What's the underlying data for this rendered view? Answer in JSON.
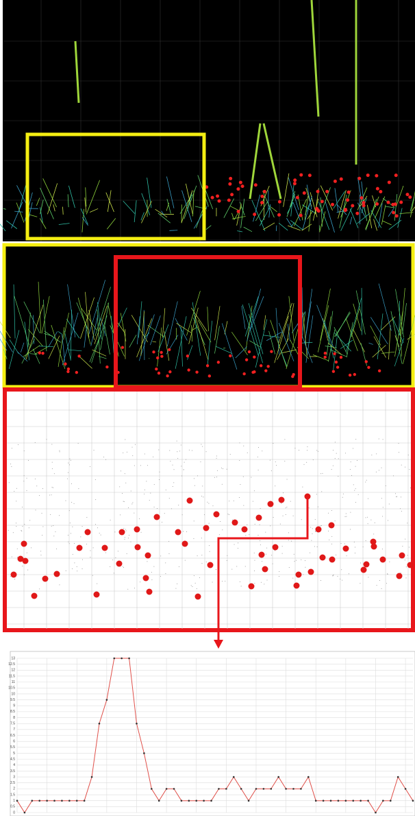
{
  "chart_data": {
    "type": "line",
    "categories": [
      null,
      null,
      null,
      null,
      null,
      null,
      null,
      null,
      null,
      null,
      null,
      null,
      null,
      null,
      null,
      null,
      null,
      null,
      null,
      null,
      null,
      null,
      null,
      null,
      null,
      null,
      null,
      null,
      null,
      null,
      null,
      null,
      null,
      null,
      null,
      null,
      null,
      null,
      null,
      null,
      null,
      null,
      null,
      null,
      null,
      null,
      null,
      null,
      null,
      null,
      null,
      null,
      null,
      null
    ],
    "series": [
      {
        "color": "#e0504a",
        "values": [
          1,
          0,
          1,
          1,
          1,
          1,
          1,
          1,
          1,
          1,
          3,
          7.5,
          9.5,
          13,
          13,
          13,
          7.5,
          5,
          2,
          1,
          2,
          2,
          1,
          1,
          1,
          1,
          1,
          2,
          2,
          3,
          2,
          1,
          2,
          2,
          2,
          3,
          2,
          2,
          2,
          3,
          1,
          1,
          1,
          1,
          1,
          1,
          1,
          1,
          0,
          1,
          1,
          3,
          2,
          1
        ]
      }
    ],
    "ylim": [
      0,
      13
    ],
    "yticks": [
      0,
      0.5,
      1,
      1.5,
      2,
      2.5,
      3,
      3.5,
      4,
      4.5,
      5,
      5.5,
      6,
      6.5,
      7,
      7.5,
      8,
      8.5,
      9,
      9.5,
      10,
      10.5,
      11,
      11.5,
      12,
      12.5,
      13
    ],
    "grid": true
  }
}
